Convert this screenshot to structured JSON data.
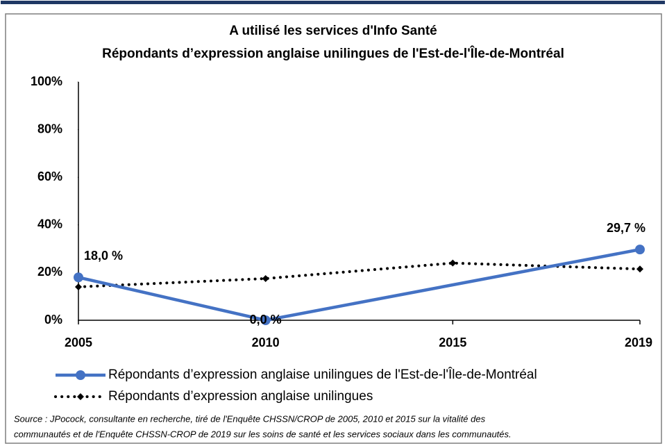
{
  "chart_data": {
    "type": "line",
    "title": "A utilisé les services d'Info Santé",
    "subtitle": "Répondants d’expression anglaise unilingues de l'Est-de-l'Île-de-Montréal",
    "categories": [
      "2005",
      "2010",
      "2015",
      "2019"
    ],
    "series": [
      {
        "name": "Répondants d’expression anglaise unilingues de l'Est-de-l'Île-de-Montréal",
        "color": "#4472c4",
        "style": "solid",
        "marker": "circle",
        "values": [
          18.0,
          0.0,
          null,
          29.7
        ],
        "value_labels": [
          "18,0 %",
          "0,0 %",
          null,
          "29,7 %"
        ]
      },
      {
        "name": "Répondants d’expression anglaise unilingues",
        "color": "#000000",
        "style": "dotted",
        "marker": "diamond",
        "values": [
          14,
          17.5,
          24,
          21.5
        ]
      }
    ],
    "span_gaps": true,
    "ylim": [
      0,
      100
    ],
    "yticks": [
      {
        "value": 0,
        "label": "0%"
      },
      {
        "value": 20,
        "label": "20%"
      },
      {
        "value": 40,
        "label": "40%"
      },
      {
        "value": 60,
        "label": "60%"
      },
      {
        "value": 80,
        "label": "80%"
      },
      {
        "value": 100,
        "label": "100%"
      }
    ],
    "grid": false,
    "legend": "bottom",
    "source": [
      "Source : JPocock, consultante en recherche, tiré de l'Enquête CHSSN/CROP de 2005, 2010  et 2015  sur la vitalité des",
      "communautés et de l'Enquête CHSSN-CROP de 2019 sur les soins de santé et les services sociaux dans les communautés."
    ]
  }
}
